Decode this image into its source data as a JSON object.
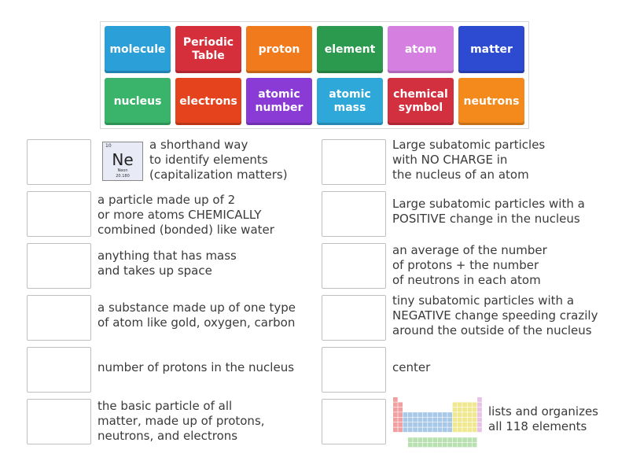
{
  "tiles": [
    {
      "label": "molecule",
      "color": "#2a9fd8"
    },
    {
      "label": "Periodic\nTable",
      "color": "#d62f3c"
    },
    {
      "label": "proton",
      "color": "#f07a1c"
    },
    {
      "label": "element",
      "color": "#2b9a4f"
    },
    {
      "label": "atom",
      "color": "#d57fe0"
    },
    {
      "label": "matter",
      "color": "#2c4bd1"
    },
    {
      "label": "nucleus",
      "color": "#3ab46b"
    },
    {
      "label": "electrons",
      "color": "#e5431d"
    },
    {
      "label": "atomic\nnumber",
      "color": "#8a3bd6"
    },
    {
      "label": "atomic\nmass",
      "color": "#2ea8d8"
    },
    {
      "label": "chemical\nsymbol",
      "color": "#d22f3f"
    },
    {
      "label": "neutrons",
      "color": "#f58a1c"
    }
  ],
  "left_clues": [
    "a shorthand way\nto identify elements\n(capitalization matters)",
    "a particle made up of 2\nor more atoms CHEMICALLY\ncombined (bonded) like water",
    "anything that has mass\nand takes up space",
    "a substance made up of one type\nof atom like gold, oxygen, carbon",
    "number of protons in the nucleus",
    "the basic particle of all\nmatter, made up of protons,\nneutrons, and electrons"
  ],
  "right_clues": [
    "Large subatomic particles\nwith NO CHARGE in\nthe nucleus of an atom",
    "Large subatomic particles with a\nPOSITIVE change in the nucleus",
    "an average of the number\nof protons + the number\nof neutrons in each atom",
    "tiny subatomic particles with a\nNEGATIVE change speeding crazily\naround the outside of the nucleus",
    "center",
    "lists and organizes\nall 118 elements"
  ],
  "neon_card": {
    "number": "10",
    "symbol": "Ne",
    "name": "Neon",
    "mass": "20.180"
  }
}
